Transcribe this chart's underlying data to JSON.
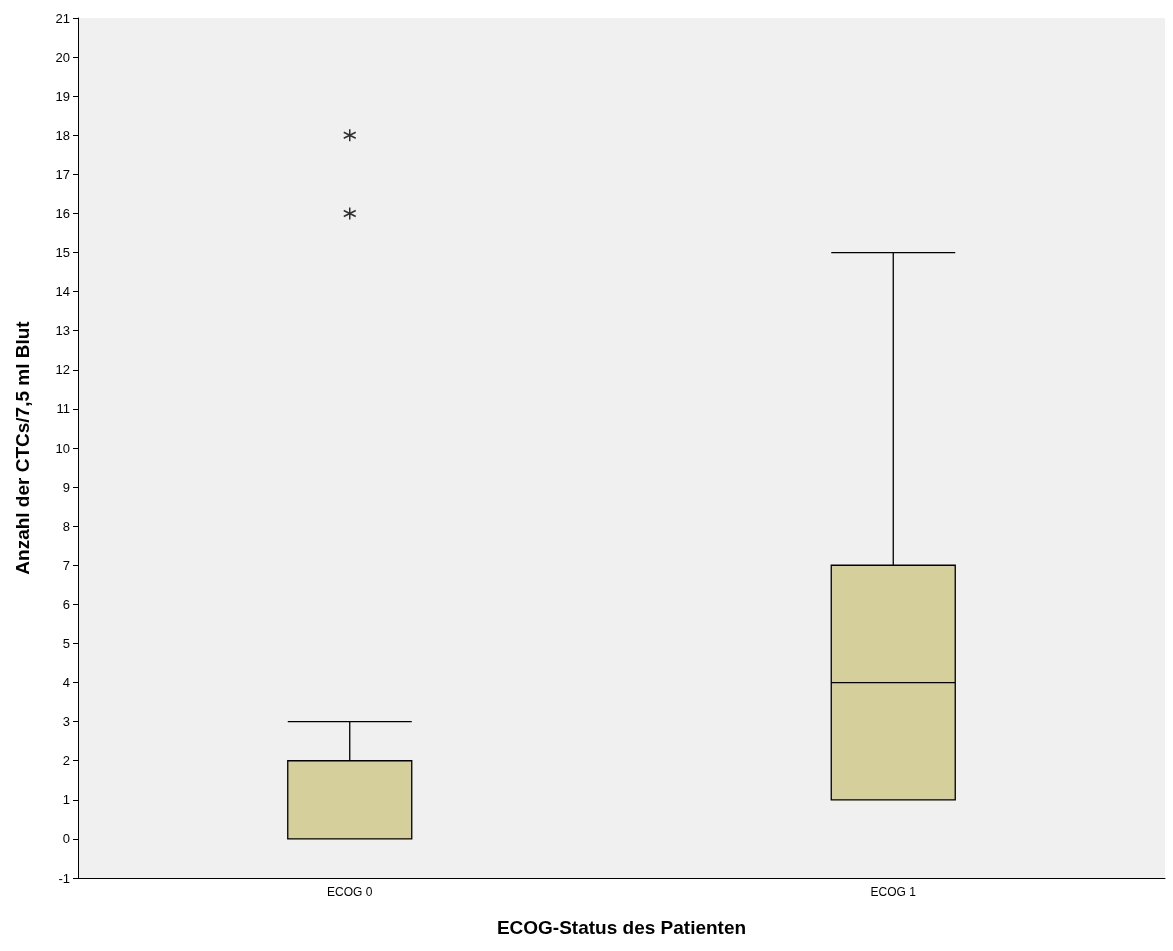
{
  "chart_data": {
    "type": "box",
    "xlabel": "ECOG-Status des Patienten",
    "ylabel": "Anzahl der CTCs/7,5 ml Blut",
    "categories": [
      "ECOG 0",
      "ECOG 1"
    ],
    "boxes": [
      {
        "low": 0,
        "q1": 0,
        "median": 0,
        "q3": 2,
        "high": 3,
        "outliers": [
          16,
          18
        ]
      },
      {
        "low": 1,
        "q1": 1,
        "median": 4,
        "q3": 7,
        "high": 15
      }
    ],
    "color": "#d4cf9b",
    "marker": "star",
    "grid": false,
    "ylim": [
      -1,
      21
    ],
    "yticks": [
      -1,
      0,
      1,
      2,
      3,
      4,
      5,
      6,
      7,
      8,
      9,
      10,
      11,
      12,
      13,
      14,
      15,
      16,
      17,
      18,
      19,
      20,
      21
    ]
  }
}
